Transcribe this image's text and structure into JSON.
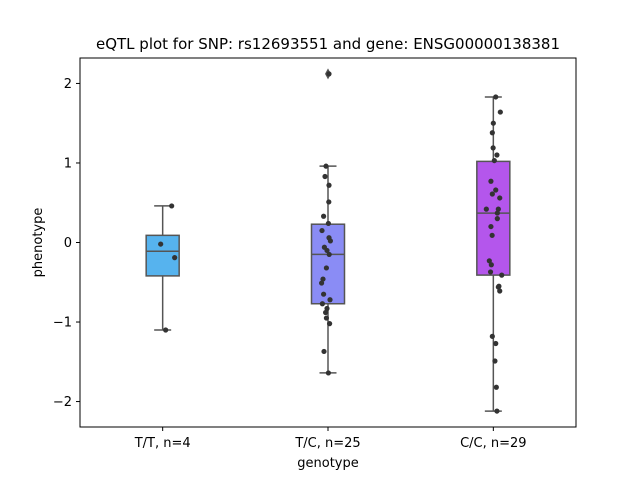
{
  "chart_data": {
    "type": "box",
    "title": "eQTL plot for SNP: rs12693551 and gene: ENSG00000138381",
    "xlabel": "genotype",
    "ylabel": "phenotype",
    "ylim": [
      -2.32,
      2.32
    ],
    "yticks": [
      {
        "value": -2,
        "label": "−2"
      },
      {
        "value": -1,
        "label": "−1"
      },
      {
        "value": 0,
        "label": "0"
      },
      {
        "value": 1,
        "label": "1"
      },
      {
        "value": 2,
        "label": "2"
      }
    ],
    "categories": [
      "T/T, n=4",
      "T/C, n=25",
      "C/C, n=29"
    ],
    "boxes": [
      {
        "color": "#56b3ee",
        "whisker_low": -1.1,
        "q1": -0.42,
        "median": -0.11,
        "q3": 0.09,
        "whisker_high": 0.46,
        "outliers": []
      },
      {
        "color": "#8a8cf5",
        "whisker_low": -1.64,
        "q1": -0.77,
        "median": -0.15,
        "q3": 0.23,
        "whisker_high": 0.96,
        "outliers": [
          2.12
        ]
      },
      {
        "color": "#b456ec",
        "whisker_low": -2.12,
        "q1": -0.41,
        "median": 0.37,
        "q3": 1.02,
        "whisker_high": 1.83,
        "outliers": []
      }
    ],
    "points": [
      [
        [
          0.45,
          0.46
        ],
        [
          -0.1,
          -0.02
        ],
        [
          0.6,
          -0.19
        ],
        [
          0.15,
          -1.1
        ]
      ],
      [
        [
          0.05,
          2.12
        ],
        [
          -0.1,
          0.96
        ],
        [
          -0.15,
          0.83
        ],
        [
          0.05,
          0.72
        ],
        [
          0.04,
          0.51
        ],
        [
          -0.22,
          0.33
        ],
        [
          0.02,
          0.24
        ],
        [
          -0.3,
          0.15
        ],
        [
          0.12,
          0.02
        ],
        [
          0.05,
          0.06
        ],
        [
          -0.18,
          -0.06
        ],
        [
          -0.05,
          -0.1
        ],
        [
          0.06,
          -0.15
        ],
        [
          -0.08,
          -0.32
        ],
        [
          -0.25,
          -0.46
        ],
        [
          -0.32,
          -0.51
        ],
        [
          -0.22,
          -0.65
        ],
        [
          0.1,
          -0.72
        ],
        [
          -0.28,
          -0.77
        ],
        [
          -0.05,
          -0.83
        ],
        [
          -0.12,
          -0.88
        ],
        [
          -0.08,
          -0.95
        ],
        [
          0.08,
          -1.02
        ],
        [
          -0.2,
          -1.37
        ],
        [
          0.02,
          -1.64
        ]
      ],
      [
        [
          0.12,
          1.83
        ],
        [
          0.35,
          1.64
        ],
        [
          0.0,
          1.5
        ],
        [
          -0.05,
          1.38
        ],
        [
          -0.01,
          1.19
        ],
        [
          0.18,
          1.1
        ],
        [
          0.05,
          1.03
        ],
        [
          -0.12,
          0.77
        ],
        [
          0.12,
          0.66
        ],
        [
          -0.05,
          0.61
        ],
        [
          0.32,
          0.56
        ],
        [
          0.25,
          0.42
        ],
        [
          0.2,
          0.37
        ],
        [
          0.2,
          0.3
        ],
        [
          -0.12,
          0.2
        ],
        [
          -0.06,
          0.09
        ],
        [
          -0.2,
          -0.23
        ],
        [
          -0.1,
          -0.28
        ],
        [
          -0.14,
          -0.37
        ],
        [
          0.42,
          -0.41
        ],
        [
          0.25,
          -0.56
        ],
        [
          0.32,
          -0.61
        ],
        [
          -0.05,
          -1.18
        ],
        [
          0.12,
          -1.27
        ],
        [
          0.08,
          -1.49
        ],
        [
          0.15,
          -1.82
        ],
        [
          0.18,
          -2.12
        ],
        [
          0.28,
          -0.55
        ],
        [
          -0.35,
          0.42
        ]
      ]
    ]
  }
}
